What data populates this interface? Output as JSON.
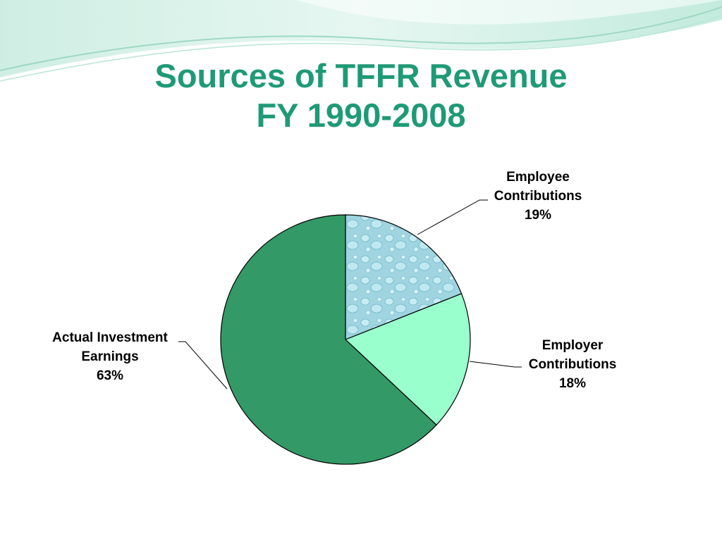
{
  "slide": {
    "title_line1": "Sources of TFFR Revenue",
    "title_line2": "FY 1990-2008"
  },
  "colors": {
    "title": "#1f9a76",
    "employee": "#9fd4e0",
    "employer": "#99ffcc",
    "investment": "#339966"
  },
  "chart_data": {
    "type": "pie",
    "title": "Sources of TFFR Revenue FY 1990-2008",
    "slices": [
      {
        "label_lines": [
          "Employee",
          "Contributions"
        ],
        "value": 19,
        "value_label": "19%",
        "color": "#9fd4e0",
        "texture": "water-droplets"
      },
      {
        "label_lines": [
          "Employer",
          "Contributions"
        ],
        "value": 18,
        "value_label": "18%",
        "color": "#99ffcc"
      },
      {
        "label_lines": [
          "Actual Investment",
          "Earnings"
        ],
        "value": 63,
        "value_label": "63%",
        "color": "#339966"
      }
    ]
  }
}
